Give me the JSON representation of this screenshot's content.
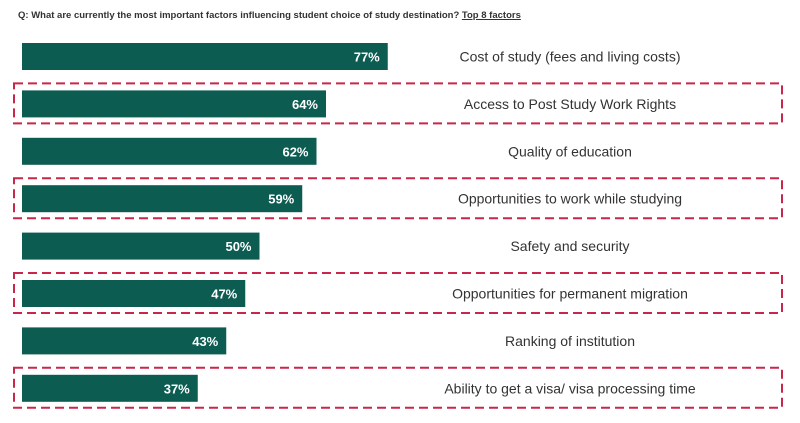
{
  "question": {
    "text": "Q: What are currently the most important factors influencing student choice of study destination?",
    "link": "Top 8 factors"
  },
  "chart_data": {
    "type": "bar",
    "orientation": "horizontal",
    "unit": "%",
    "categories": [
      "Cost of study (fees and living costs)",
      "Access to Post Study Work Rights",
      "Quality of education",
      "Opportunities to work while studying",
      "Safety and security",
      "Opportunities for permanent migration",
      "Ranking of institution",
      "Ability to get a visa/ visa processing time"
    ],
    "values": [
      77,
      64,
      62,
      59,
      50,
      47,
      43,
      37
    ],
    "value_labels": [
      "77%",
      "64%",
      "62%",
      "59%",
      "50%",
      "47%",
      "43%",
      "37%"
    ],
    "highlighted": [
      false,
      true,
      false,
      true,
      false,
      true,
      false,
      true
    ],
    "xlim": [
      0,
      100
    ],
    "grid": false,
    "legend": "none"
  },
  "colors": {
    "bar": "#0d5c52",
    "highlight_border": "#c8264a",
    "text": "#333333"
  }
}
